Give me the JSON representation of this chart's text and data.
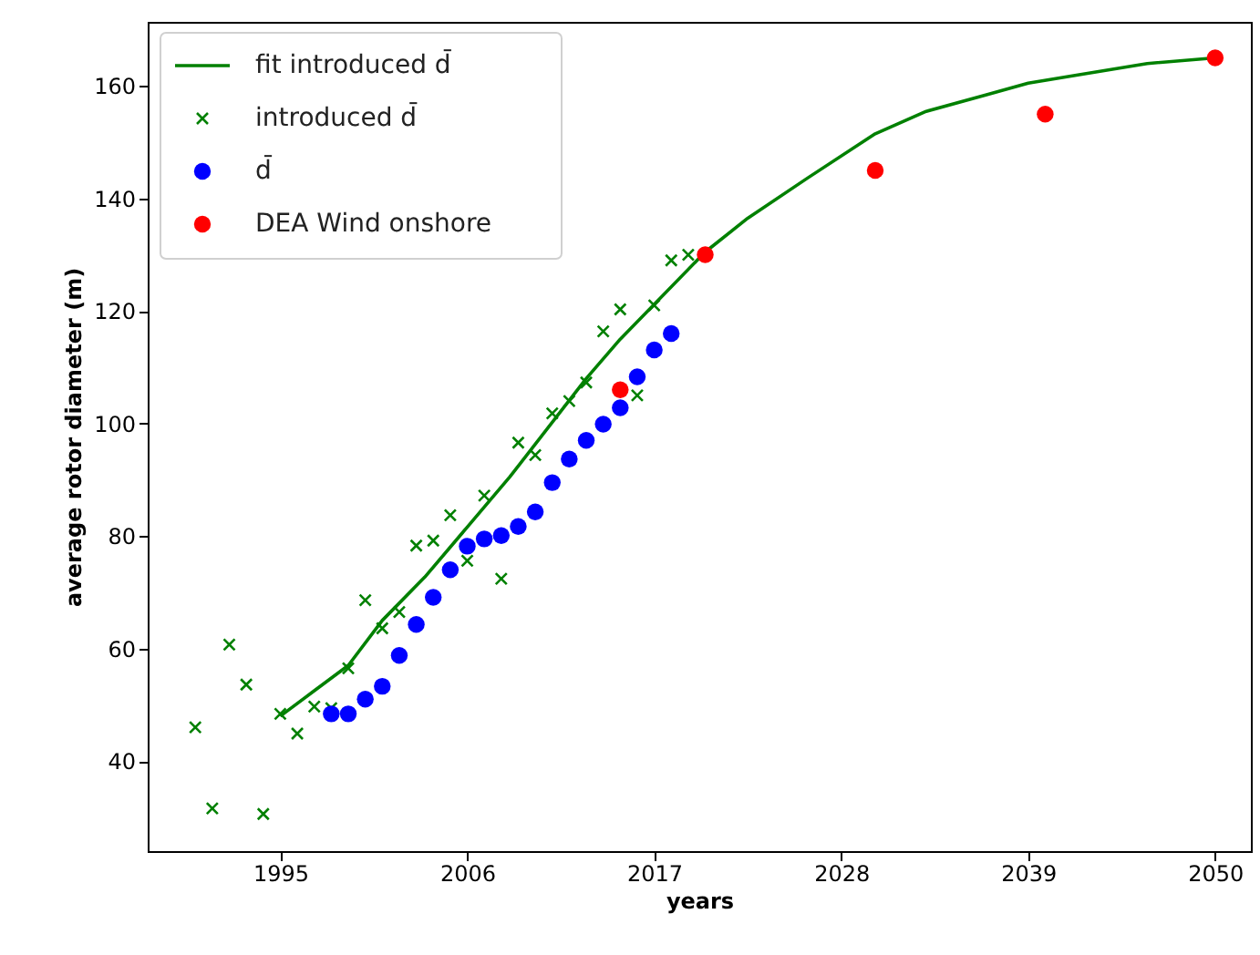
{
  "chart_data": {
    "type": "scatter",
    "xlabel": "years",
    "ylabel": "average rotor diameter (m)",
    "xlim": [
      1987.2,
      2052.1
    ],
    "ylim": [
      24,
      171.4
    ],
    "xticks": [
      1995,
      2006,
      2017,
      2028,
      2039,
      2050
    ],
    "yticks": [
      40,
      60,
      80,
      100,
      120,
      140,
      160
    ],
    "grid": false,
    "legend": "top left",
    "series": [
      {
        "name": "fit introduced d̄",
        "type": "line",
        "color": "#008000",
        "marker": "none",
        "line_style": "solid",
        "x": [
          1995,
          1997,
          1999,
          2001,
          2003.5,
          2008.5,
          2013,
          2015,
          2020,
          2022.5,
          2026,
          2030,
          2033,
          2036.5,
          2039,
          2042,
          2046,
          2050
        ],
        "values": [
          48,
          52.5,
          57,
          65,
          72.7,
          90.5,
          108,
          115,
          130.5,
          136.5,
          143.6,
          151.5,
          155.5,
          158.4,
          160.5,
          162,
          164,
          165
        ]
      },
      {
        "name": "introduced d̄",
        "color": "#008000",
        "marker": "cross",
        "x": [
          1990,
          1991,
          1992,
          1993,
          1994,
          1995,
          1996,
          1997,
          1998,
          1999,
          2000,
          2001,
          2002,
          2003,
          2004,
          2005,
          2006,
          2007,
          2008,
          2009,
          2010,
          2011,
          2012,
          2013,
          2014,
          2015,
          2016,
          2017,
          2018,
          2019
        ],
        "values": [
          46,
          31.6,
          60.7,
          53.6,
          30.6,
          48.4,
          44.9,
          49.7,
          49.4,
          56.5,
          68.6,
          63.6,
          66.5,
          78.3,
          79.2,
          83.7,
          75.6,
          87.2,
          72.4,
          96.6,
          94.4,
          101.8,
          104,
          107.3,
          116.4,
          120.3,
          105,
          121,
          129,
          130
        ]
      },
      {
        "name": "d̄",
        "color": "#0000ff",
        "marker": "circle",
        "x": [
          1998,
          1999,
          2000,
          2001,
          2002,
          2003,
          2004,
          2005,
          2006,
          2007,
          2008,
          2009,
          2010,
          2011,
          2012,
          2013,
          2014,
          2015,
          2016,
          2017,
          2018
        ],
        "values": [
          48.4,
          48.4,
          51,
          53.3,
          58.8,
          64.3,
          69.1,
          74,
          78.2,
          79.5,
          80.1,
          81.7,
          84.3,
          89.5,
          93.7,
          97,
          99.9,
          102.8,
          108.3,
          113.1,
          116
        ]
      },
      {
        "name": "DEA Wind onshore",
        "color": "#ff0000",
        "marker": "circle",
        "x": [
          2015,
          2020,
          2030,
          2040,
          2050
        ],
        "values": [
          106,
          130,
          145,
          155,
          165
        ]
      }
    ]
  }
}
